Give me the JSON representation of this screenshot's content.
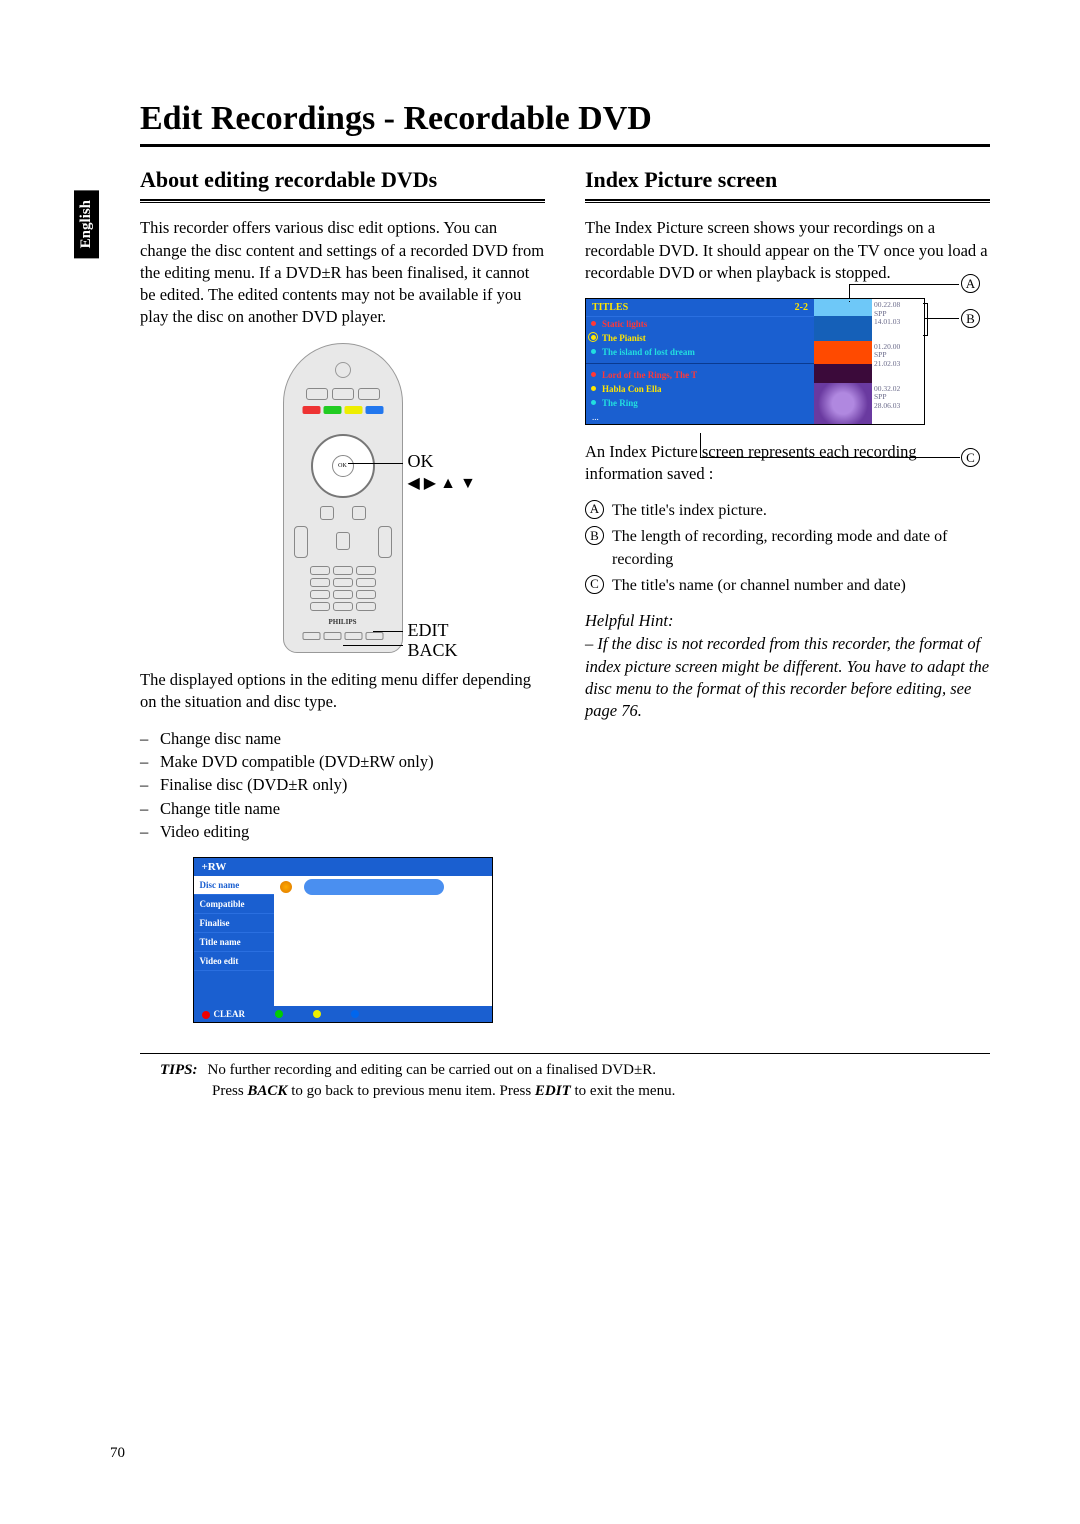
{
  "page_title": "Edit Recordings - Recordable DVD",
  "language_tab": "English",
  "page_number": "70",
  "left": {
    "heading": "About editing recordable DVDs",
    "para1": "This recorder offers various disc edit options. You can change the disc content and settings of a recorded DVD from the editing menu. If a DVD±R has been finalised, it cannot be edited. The edited contents may not be available if you play the disc on another DVD player.",
    "remote_labels": {
      "ok": "OK",
      "arrows": "◀ ▶ ▲ ▼",
      "edit": "EDIT",
      "back": "BACK",
      "brand": "PHILIPS"
    },
    "para2": "The displayed options in the editing menu differ depending on the situation and disc type.",
    "options": [
      "Change disc name",
      "Make DVD compatible (DVD±RW only)",
      "Finalise disc (DVD±R only)",
      "Change title name",
      "Video editing"
    ],
    "menu": {
      "header": "+RW",
      "items": [
        "Disc name",
        "Compatible",
        "Finalise",
        "Title name",
        "Video edit"
      ],
      "selected_index": 0,
      "footer_label": "CLEAR"
    }
  },
  "right": {
    "heading": "Index Picture screen",
    "para1": "The Index Picture screen shows your recordings on a recordable DVD.  It should appear on the TV once you load a recordable DVD or when playback is stopped.",
    "index_screen": {
      "titles_label": "TITLES",
      "titles_count": "2-2",
      "group1": [
        {
          "label": "Static lights",
          "cls": "red"
        },
        {
          "label": "The Pianist",
          "cls": "yellow",
          "selected": true
        },
        {
          "label": "The island of lost dream",
          "cls": "cyan"
        }
      ],
      "group2": [
        {
          "label": "Lord of the Rings, The T",
          "cls": "red"
        },
        {
          "label": "Habla Con Ella",
          "cls": "yellow"
        },
        {
          "label": "The Ring",
          "cls": "cyan"
        }
      ],
      "thumbs": [
        {
          "time": "00.22.08",
          "mode": "SPP",
          "date": "14.01.03"
        },
        {
          "time": "01.20.00",
          "mode": "SPP",
          "date": "21.02.03"
        },
        {
          "time": "00.32.02",
          "mode": "SPP",
          "date": "28.06.03"
        }
      ],
      "callouts": {
        "A": "A",
        "B": "B",
        "C": "C"
      }
    },
    "para2": "An Index Picture screen represents each recording information saved :",
    "info": [
      {
        "k": "A",
        "t": "The title's index picture."
      },
      {
        "k": "B",
        "t": "The length of recording, recording mode and date of recording"
      },
      {
        "k": "C",
        "t": "The title's name (or channel number and date)"
      }
    ],
    "hint_head": "Helpful Hint:",
    "hint": "– If the disc is not recorded from this recorder, the format of index picture screen might be different. You have to adapt the disc menu to the format of this recorder before editing, see page 76."
  },
  "tips": {
    "label": "TIPS:",
    "line1": "No further recording and editing can be carried out on a finalised DVD±R.",
    "line2a": "Press ",
    "line2b": "BACK",
    "line2c": " to go back to previous menu item. Press ",
    "line2d": "EDIT",
    "line2e": " to exit the menu."
  },
  "colors": {
    "blue": "#1a5fd0",
    "yellow": "#ffe600",
    "red": "#ff3838",
    "cyan": "#22dfdf"
  }
}
